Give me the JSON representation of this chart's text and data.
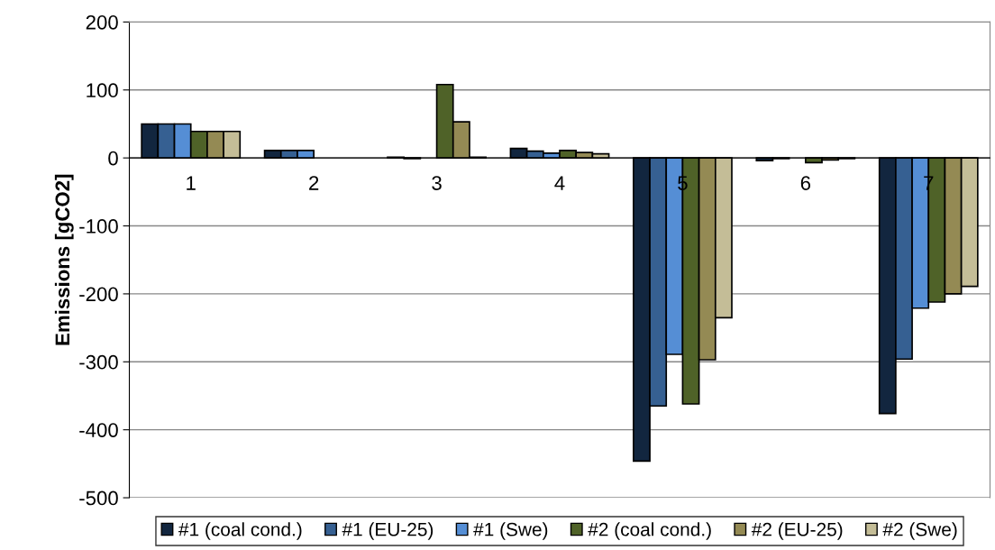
{
  "chart_data": {
    "type": "bar",
    "ylabel": "Emissions [gCO2]",
    "categories": [
      "1",
      "2",
      "3",
      "4",
      "5",
      "6",
      "7"
    ],
    "series": [
      {
        "name": "#1 (coal cond.)",
        "color": "#12263f",
        "values": [
          50,
          11,
          1,
          14,
          -446,
          -4,
          -376
        ]
      },
      {
        "name": "#1 (EU-25)",
        "color": "#366092",
        "values": [
          50,
          11,
          -1,
          10,
          -365,
          -1,
          -296
        ]
      },
      {
        "name": "#1 (Swe)",
        "color": "#558ed5",
        "values": [
          50,
          11,
          null,
          7,
          -289,
          null,
          -221
        ]
      },
      {
        "name": "#2 (coal cond.)",
        "color": "#4f6228",
        "values": [
          39,
          null,
          108,
          11,
          -362,
          -7,
          -212
        ]
      },
      {
        "name": "#2 (EU-25)",
        "color": "#948a54",
        "values": [
          39,
          null,
          53,
          8,
          -297,
          -3,
          -200
        ]
      },
      {
        "name": "#2 (Swe)",
        "color": "#c4bd97",
        "values": [
          39,
          null,
          1,
          6,
          -235,
          -1,
          -189
        ]
      }
    ],
    "ylim": [
      -500,
      200
    ],
    "yticks": [
      -500,
      -400,
      -300,
      -200,
      -100,
      0,
      100,
      200
    ],
    "grid": "y",
    "legend": "bottom"
  }
}
